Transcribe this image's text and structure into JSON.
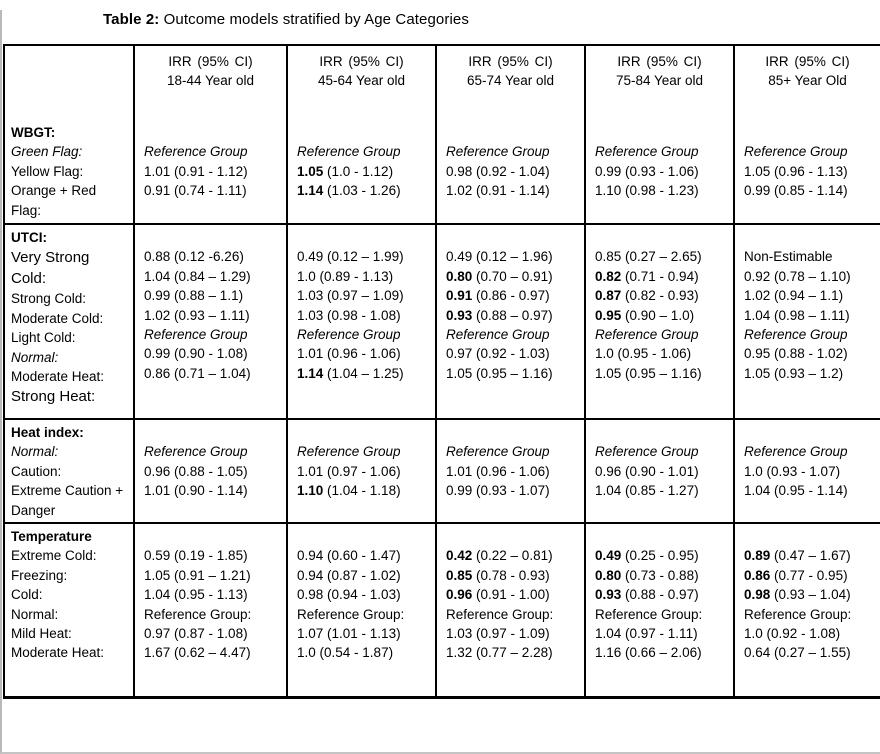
{
  "title": {
    "prefix": "Table 2:",
    "text": " Outcome models stratified by Age Categories"
  },
  "table": {
    "header": {
      "irr_label": "IRR (95% CI)",
      "age_groups": [
        "18-44 Year old",
        "45-64 Year old",
        "65-74 Year old",
        "75-84 Year old",
        "85+ Year Old"
      ]
    },
    "sections": [
      {
        "id": "wbgt",
        "name": "WBGT:",
        "labels": [
          {
            "t": "Green Flag:",
            "s": "italic"
          },
          {
            "t": "Yellow Flag:"
          },
          {
            "t": "Orange + Red Flag:"
          }
        ],
        "columns": [
          [
            {
              "t": "Reference Group",
              "s": "ref"
            },
            {
              "v": "1.01",
              "ci": "(0.91 - 1.12)"
            },
            {
              "v": "0.91",
              "ci": "(0.74 - 1.11)"
            }
          ],
          [
            {
              "t": "Reference Group",
              "s": "ref"
            },
            {
              "v": "1.05",
              "ci": "(1.0 - 1.12)",
              "b": true
            },
            {
              "v": "1.14",
              "ci": "(1.03 - 1.26)",
              "b": true
            }
          ],
          [
            {
              "t": "Reference Group",
              "s": "ref"
            },
            {
              "v": "0.98",
              "ci": "(0.92 - 1.04)"
            },
            {
              "v": "1.02",
              "ci": "(0.91 - 1.14)"
            }
          ],
          [
            {
              "t": "Reference Group",
              "s": "ref"
            },
            {
              "v": "0.99",
              "ci": "(0.93 - 1.06)"
            },
            {
              "v": "1.10",
              "ci": "(0.98 - 1.23)"
            }
          ],
          [
            {
              "t": "Reference Group",
              "s": "ref"
            },
            {
              "v": "1.05",
              "ci": "(0.96 - 1.13)"
            },
            {
              "v": "0.99",
              "ci": "(0.85 - 1.14)"
            }
          ]
        ]
      },
      {
        "id": "utci",
        "name": "UTCI:",
        "labels": [
          {
            "t": "Very Strong Cold:",
            "s": "large"
          },
          {
            "t": "Strong Cold:"
          },
          {
            "t": "Moderate Cold:"
          },
          {
            "t": "Light Cold:"
          },
          {
            "t": "Normal:",
            "s": "italic"
          },
          {
            "t": "Moderate Heat:"
          },
          {
            "t": "Strong Heat:",
            "s": "large"
          }
        ],
        "columns": [
          [
            {
              "v": "0.88",
              "ci": "(0.12 -6.26)"
            },
            {
              "v": "1.04",
              "ci": "(0.84 – 1.29)"
            },
            {
              "v": "0.99",
              "ci": "(0.88 – 1.1)"
            },
            {
              "v": "1.02",
              "ci": "(0.93 – 1.11)"
            },
            {
              "t": "Reference Group",
              "s": "ref"
            },
            {
              "v": "0.99",
              "ci": "(0.90 - 1.08)"
            },
            {
              "v": "0.86",
              "ci": "(0.71 – 1.04)"
            }
          ],
          [
            {
              "v": "0.49",
              "ci": "(0.12 – 1.99)"
            },
            {
              "v": "1.0",
              "ci": "(0.89 - 1.13)"
            },
            {
              "v": "1.03",
              "ci": "(0.97 – 1.09)"
            },
            {
              "v": "1.03",
              "ci": "(0.98 - 1.08)"
            },
            {
              "t": "Reference Group",
              "s": "ref"
            },
            {
              "v": "1.01",
              "ci": "(0.96 - 1.06)"
            },
            {
              "v": "1.14",
              "ci": "(1.04 – 1.25)",
              "b": true
            }
          ],
          [
            {
              "v": "0.49",
              "ci": "(0.12 – 1.96)"
            },
            {
              "v": "0.80",
              "ci": "(0.70 – 0.91)",
              "b": true
            },
            {
              "v": "0.91",
              "ci": "(0.86 - 0.97)",
              "b": true
            },
            {
              "v": "0.93",
              "ci": "(0.88 – 0.97)",
              "b": true
            },
            {
              "t": "Reference Group",
              "s": "ref"
            },
            {
              "v": "0.97",
              "ci": "(0.92 - 1.03)"
            },
            {
              "v": "1.05",
              "ci": "(0.95 – 1.16)"
            }
          ],
          [
            {
              "v": "0.85",
              "ci": "(0.27 – 2.65)"
            },
            {
              "v": "0.82",
              "ci": "(0.71 - 0.94)",
              "b": true
            },
            {
              "v": "0.87",
              "ci": "(0.82 - 0.93)",
              "b": true
            },
            {
              "v": "0.95",
              "ci": "(0.90 – 1.0)",
              "b": true
            },
            {
              "t": "Reference Group",
              "s": "ref"
            },
            {
              "v": "1.0",
              "ci": "(0.95 - 1.06)"
            },
            {
              "v": "1.05",
              "ci": "(0.95 – 1.16)"
            }
          ],
          [
            {
              "t": "Non-Estimable"
            },
            {
              "v": "0.92",
              "ci": "(0.78 – 1.10)"
            },
            {
              "v": "1.02",
              "ci": "(0.94 – 1.1)"
            },
            {
              "v": "1.04",
              "ci": "(0.98 – 1.11)"
            },
            {
              "t": "Reference Group",
              "s": "ref"
            },
            {
              "v": "0.95",
              "ci": "(0.88 - 1.02)"
            },
            {
              "v": "1.05",
              "ci": "(0.93 – 1.2)"
            }
          ]
        ]
      },
      {
        "id": "heat-index",
        "name": "Heat index:",
        "labels": [
          {
            "t": "Normal:",
            "s": "italic"
          },
          {
            "t": "Caution:"
          },
          {
            "t": "Extreme Caution + Danger"
          }
        ],
        "columns": [
          [
            {
              "t": "Reference Group",
              "s": "ref"
            },
            {
              "v": "0.96",
              "ci": "(0.88 - 1.05)"
            },
            {
              "v": "1.01",
              "ci": "(0.90 - 1.14)"
            }
          ],
          [
            {
              "t": "Reference Group",
              "s": "ref"
            },
            {
              "v": "1.01",
              "ci": "(0.97 - 1.06)"
            },
            {
              "v": "1.10",
              "ci": "(1.04 - 1.18)",
              "b": true
            }
          ],
          [
            {
              "t": "Reference Group",
              "s": "ref"
            },
            {
              "v": "1.01",
              "ci": "(0.96 - 1.06)"
            },
            {
              "v": "0.99",
              "ci": "(0.93 - 1.07)"
            }
          ],
          [
            {
              "t": "Reference Group",
              "s": "ref"
            },
            {
              "v": "0.96",
              "ci": "(0.90 - 1.01)"
            },
            {
              "v": "1.04",
              "ci": "(0.85 - 1.27)"
            }
          ],
          [
            {
              "t": "Reference Group",
              "s": "ref"
            },
            {
              "v": "1.0",
              "ci": "(0.93 - 1.07)"
            },
            {
              "v": "1.04",
              "ci": "(0.95 - 1.14)"
            }
          ]
        ]
      },
      {
        "id": "temperature",
        "name": "Temperature",
        "labels": [
          {
            "t": "Extreme Cold:"
          },
          {
            "t": "Freezing:"
          },
          {
            "t": "Cold:"
          },
          {
            "t": "Normal:"
          },
          {
            "t": "Mild Heat:"
          },
          {
            "t": "Moderate Heat:"
          }
        ],
        "columns": [
          [
            {
              "v": "0.59",
              "ci": "(0.19 - 1.85)"
            },
            {
              "v": "1.05",
              "ci": "(0.91 – 1.21)"
            },
            {
              "v": "1.04",
              "ci": "(0.95 - 1.13)"
            },
            {
              "t": "Reference Group:"
            },
            {
              "v": "0.97",
              "ci": "(0.87 - 1.08)"
            },
            {
              "v": "1.67",
              "ci": "(0.62 – 4.47)"
            }
          ],
          [
            {
              "v": "0.94",
              "ci": "(0.60 - 1.47)"
            },
            {
              "v": "0.94",
              "ci": "(0.87 - 1.02)"
            },
            {
              "v": "0.98",
              "ci": "(0.94 - 1.03)"
            },
            {
              "t": "Reference Group:"
            },
            {
              "v": "1.07",
              "ci": "(1.01 - 1.13)"
            },
            {
              "v": "1.0",
              "ci": "(0.54 - 1.87)"
            }
          ],
          [
            {
              "v": "0.42",
              "ci": "(0.22 – 0.81)",
              "b": true
            },
            {
              "v": "0.85",
              "ci": "(0.78 - 0.93)",
              "b": true
            },
            {
              "v": "0.96",
              "ci": "(0.91 - 1.00)",
              "b": true
            },
            {
              "t": "Reference Group:"
            },
            {
              "v": "1.03",
              "ci": "(0.97 - 1.09)"
            },
            {
              "v": "1.32",
              "ci": "(0.77 – 2.28)"
            }
          ],
          [
            {
              "v": "0.49",
              "ci": "(0.25 - 0.95)",
              "b": true
            },
            {
              "v": "0.80",
              "ci": "(0.73 - 0.88)",
              "b": true
            },
            {
              "v": "0.93",
              "ci": "(0.88 - 0.97)",
              "b": true
            },
            {
              "t": "Reference Group:"
            },
            {
              "v": "1.04",
              "ci": "(0.97 - 1.11)"
            },
            {
              "v": "1.16",
              "ci": "(0.66 – 2.06)"
            }
          ],
          [
            {
              "v": "0.89",
              "ci": "(0.47 – 1.67)",
              "b": true
            },
            {
              "v": "0.86",
              "ci": "(0.77 - 0.95)",
              "b": true
            },
            {
              "v": "0.98",
              "ci": "(0.93 – 1.04)",
              "b": true
            },
            {
              "t": "Reference Group:"
            },
            {
              "v": "1.0",
              "ci": "(0.92 - 1.08)"
            },
            {
              "v": "0.64",
              "ci": "(0.27 – 1.55)"
            }
          ]
        ]
      }
    ]
  }
}
